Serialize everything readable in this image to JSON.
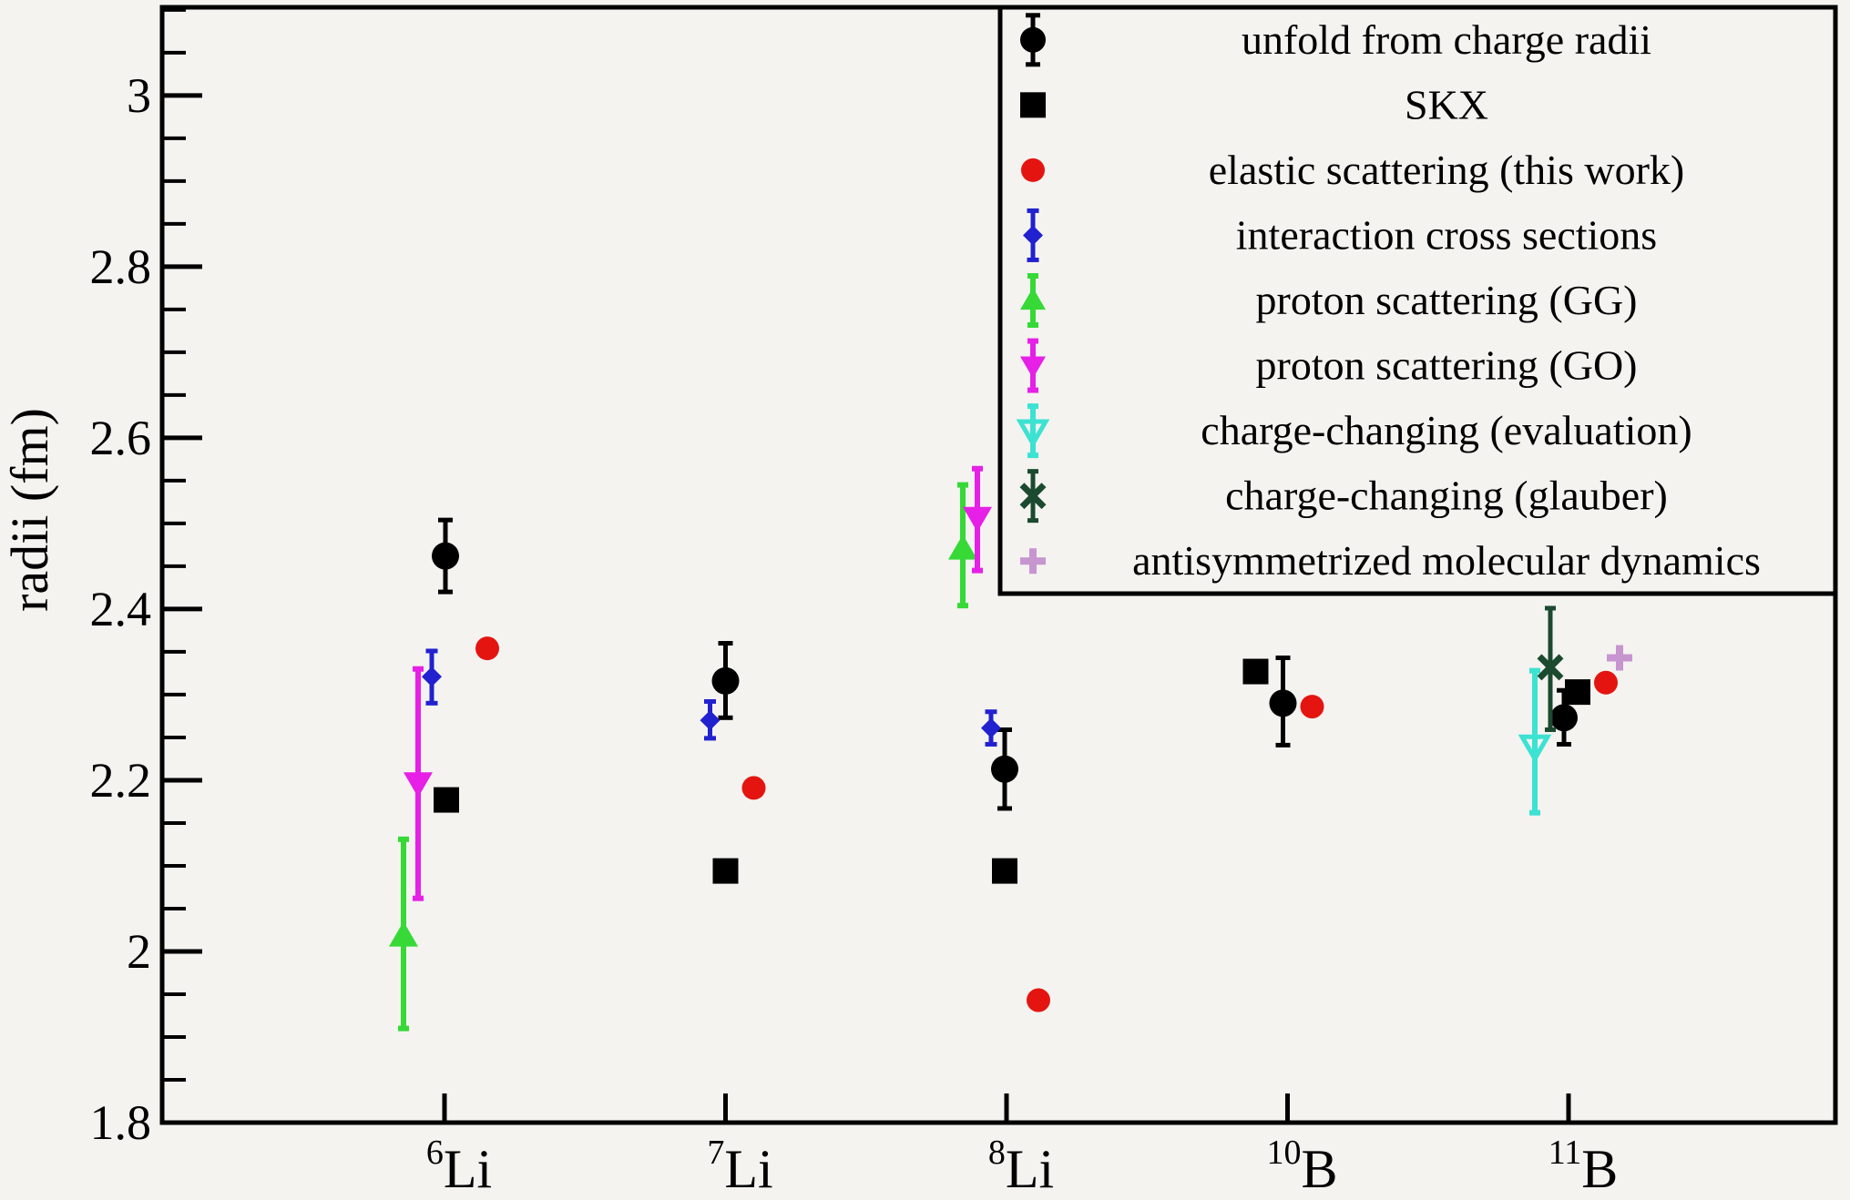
{
  "figure": {
    "background": "#f4f3f0",
    "frame_color": "#000000"
  },
  "chart_data": {
    "type": "scatter",
    "title": "",
    "xlabel": "",
    "ylabel": "radii (fm)",
    "ylim": [
      1.8,
      3.103
    ],
    "grid": false,
    "legend_position": "top-right",
    "y_major_ticks": [
      {
        "value": 1.8,
        "label": "1.8"
      },
      {
        "value": 2.0,
        "label": "2"
      },
      {
        "value": 2.2,
        "label": "2.2"
      },
      {
        "value": 2.4,
        "label": "2.4"
      },
      {
        "value": 2.6,
        "label": "2.6"
      },
      {
        "value": 2.8,
        "label": "2.8"
      },
      {
        "value": 3.0,
        "label": "3"
      }
    ],
    "y_minor_step": 0.05,
    "categories": [
      "6Li",
      "7Li",
      "8Li",
      "10B",
      "11B"
    ],
    "category_labels": [
      {
        "sup": "6",
        "sym": "Li"
      },
      {
        "sup": "7",
        "sym": "Li"
      },
      {
        "sup": "8",
        "sym": "Li"
      },
      {
        "sup": "10",
        "sym": "B"
      },
      {
        "sup": "11",
        "sym": "B"
      }
    ],
    "series": [
      {
        "name": "unfold from charge radii",
        "marker": {
          "shape": "circle",
          "color": "#000000",
          "size": 15
        },
        "errorbar": {
          "color": "#000000",
          "width": 5,
          "cap": 16,
          "in_legend": true
        },
        "points": [
          {
            "ci": 0,
            "dx": 1,
            "value": 2.462,
            "err_plus": 0.042,
            "err_minus": 0.042
          },
          {
            "ci": 1,
            "dx": 0,
            "value": 2.316,
            "err_plus": 0.044,
            "err_minus": 0.043
          },
          {
            "ci": 2,
            "dx": -2,
            "value": 2.213,
            "err_plus": 0.046,
            "err_minus": 0.046
          },
          {
            "ci": 3,
            "dx": -5,
            "value": 2.29,
            "err_plus": 0.053,
            "err_minus": 0.049
          },
          {
            "ci": 4,
            "dx": -5,
            "value": 2.273,
            "err_plus": 0.032,
            "err_minus": 0.031
          }
        ]
      },
      {
        "name": "SKX",
        "marker": {
          "shape": "square",
          "color": "#000000",
          "size": 14
        },
        "errorbar": null,
        "points": [
          {
            "ci": 0,
            "dx": 2,
            "value": 2.177
          },
          {
            "ci": 1,
            "dx": 0,
            "value": 2.094
          },
          {
            "ci": 2,
            "dx": -2,
            "value": 2.094
          },
          {
            "ci": 3,
            "dx": -35,
            "value": 2.327
          },
          {
            "ci": 4,
            "dx": 10,
            "value": 2.303
          }
        ]
      },
      {
        "name": "elastic scattering (this work)",
        "marker": {
          "shape": "circle",
          "color": "#e41510",
          "size": 13
        },
        "errorbar": null,
        "points": [
          {
            "ci": 0,
            "dx": 47,
            "value": 2.354
          },
          {
            "ci": 1,
            "dx": 31,
            "value": 2.191
          },
          {
            "ci": 2,
            "dx": 35,
            "value": 1.943
          },
          {
            "ci": 3,
            "dx": 27,
            "value": 2.286
          },
          {
            "ci": 4,
            "dx": 41,
            "value": 2.314
          }
        ]
      },
      {
        "name": "interaction cross sections",
        "marker": {
          "shape": "diamond",
          "color": "#2121cf",
          "size": 11
        },
        "errorbar": {
          "color": "#2121cf",
          "width": 5,
          "cap": 13,
          "in_legend": true
        },
        "points": [
          {
            "ci": 0,
            "dx": -14,
            "value": 2.321,
            "err_plus": 0.03,
            "err_minus": 0.031
          },
          {
            "ci": 1,
            "dx": -17,
            "value": 2.27,
            "err_plus": 0.022,
            "err_minus": 0.021
          },
          {
            "ci": 2,
            "dx": -17,
            "value": 2.261,
            "err_plus": 0.019,
            "err_minus": 0.019
          }
        ]
      },
      {
        "name": "proton scattering (GG)",
        "marker": {
          "shape": "triangle-up",
          "color": "#36d936",
          "size": 16
        },
        "errorbar": {
          "color": "#36d936",
          "width": 6,
          "cap": 12,
          "in_legend": true
        },
        "points": [
          {
            "ci": 0,
            "dx": -45,
            "value": 2.018,
            "err_plus": 0.113,
            "err_minus": 0.108
          },
          {
            "ci": 2,
            "dx": -48,
            "value": 2.47,
            "err_plus": 0.075,
            "err_minus": 0.066
          }
        ]
      },
      {
        "name": "proton scattering (GO)",
        "marker": {
          "shape": "triangle-down",
          "color": "#e620e6",
          "size": 16
        },
        "errorbar": {
          "color": "#e620e6",
          "width": 6,
          "cap": 12,
          "in_legend": true
        },
        "points": [
          {
            "ci": 0,
            "dx": -29,
            "value": 2.197,
            "err_plus": 0.133,
            "err_minus": 0.135
          },
          {
            "ci": 2,
            "dx": -32,
            "value": 2.507,
            "err_plus": 0.057,
            "err_minus": 0.062
          }
        ]
      },
      {
        "name": "charge-changing (evaluation)",
        "marker": {
          "shape": "triangle-down-open",
          "color": "#3ce2d2",
          "size": 14
        },
        "errorbar": {
          "color": "#3ce2d2",
          "width": 6,
          "cap": 12,
          "in_legend": true
        },
        "points": [
          {
            "ci": 4,
            "dx": -37,
            "value": 2.24,
            "err_plus": 0.088,
            "err_minus": 0.078
          }
        ]
      },
      {
        "name": "charge-changing (glauber)",
        "marker": {
          "shape": "x-cross",
          "color": "#1b4a2f",
          "size": 12
        },
        "errorbar": {
          "color": "#1b4a2f",
          "width": 5,
          "cap": 12,
          "in_legend": true
        },
        "points": [
          {
            "ci": 4,
            "dx": -20,
            "value": 2.332,
            "err_plus": 0.069,
            "err_minus": 0.073
          }
        ]
      },
      {
        "name": "antisymmetrized molecular dynamics",
        "marker": {
          "shape": "plus",
          "color": "#c795cf",
          "size": 14
        },
        "errorbar": null,
        "points": [
          {
            "ci": 4,
            "dx": 56,
            "value": 2.343
          }
        ]
      }
    ]
  },
  "legend": {
    "entries": [
      "unfold from charge radii",
      "SKX",
      "elastic scattering (this work)",
      "interaction cross sections",
      "proton scattering (GG)",
      "proton scattering (GO)",
      "charge-changing (evaluation)",
      "charge-changing (glauber)",
      "antisymmetrized molecular dynamics"
    ]
  }
}
